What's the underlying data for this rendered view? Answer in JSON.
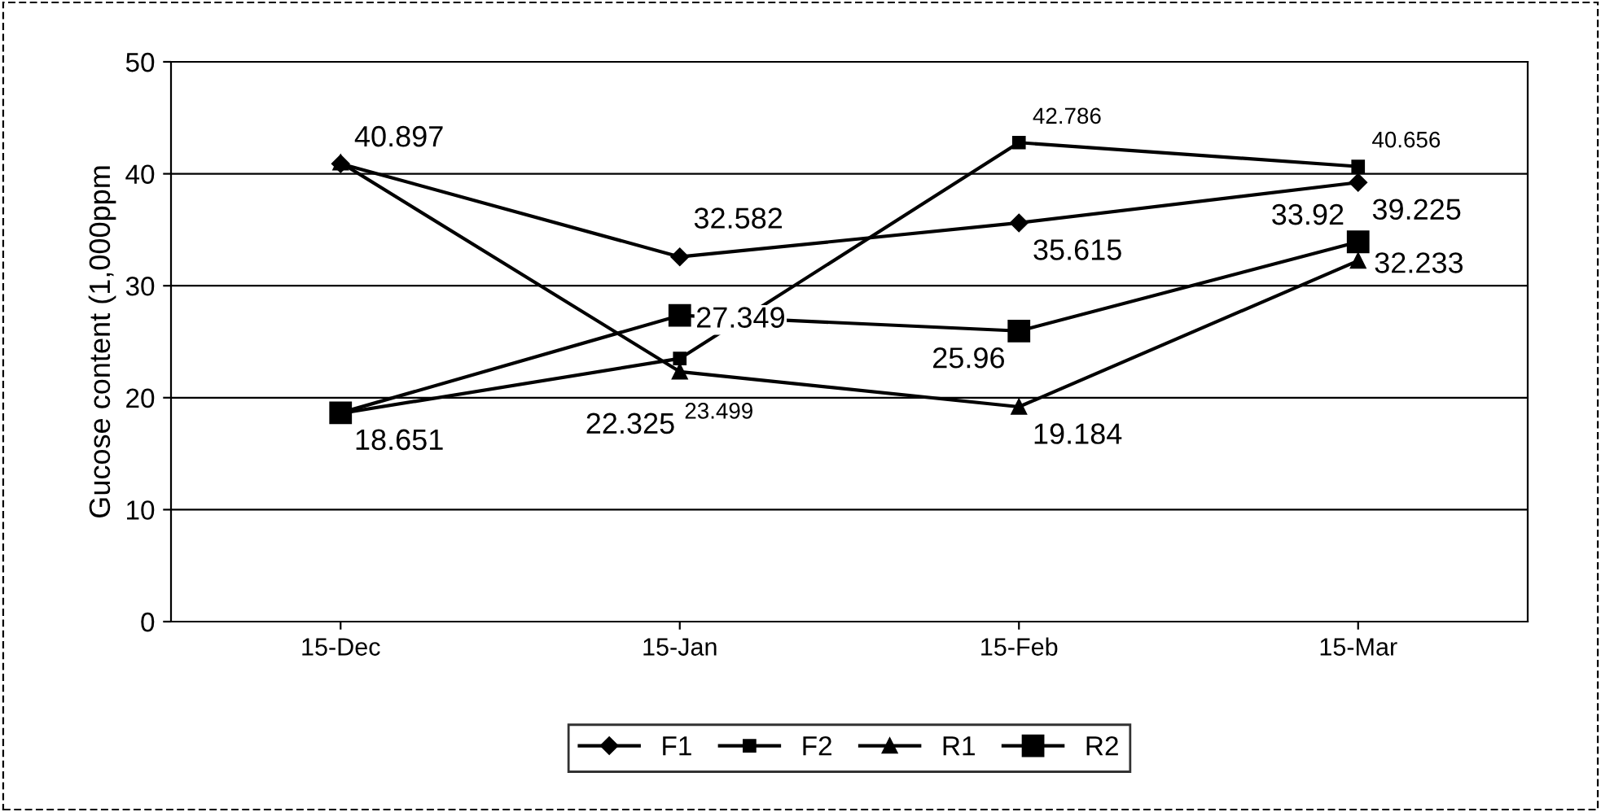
{
  "chart_data": {
    "type": "line",
    "ylabel": "Gucose content (1,000ppm",
    "categories": [
      "15-Dec",
      "15-Jan",
      "15-Feb",
      "15-Mar"
    ],
    "series": [
      {
        "name": "F1",
        "color": "#000000",
        "marker": "diamond",
        "values": [
          40.897,
          32.582,
          35.615,
          39.225
        ],
        "value_labels": [
          "40.897",
          "32.582",
          "35.615",
          "39.225"
        ]
      },
      {
        "name": "F2",
        "color": "#000000",
        "marker": "square",
        "values": [
          18.6,
          23.499,
          42.786,
          40.656
        ],
        "value_labels": [
          null,
          "23.499",
          "42.786",
          "40.656"
        ]
      },
      {
        "name": "R1",
        "color": "#000000",
        "marker": "triangle",
        "values": [
          41,
          22.325,
          19.184,
          32.233
        ],
        "value_labels": [
          null,
          "22.325",
          "19.184",
          "32.233"
        ]
      },
      {
        "name": "R2",
        "color": "#000000",
        "marker": "square",
        "values": [
          18.651,
          27.349,
          25.96,
          33.92
        ],
        "value_labels": [
          "18.651",
          "27.349",
          "25.96",
          "33.92"
        ]
      }
    ],
    "ylim": [
      0,
      50
    ],
    "yticks": [
      0,
      10,
      20,
      30,
      40,
      50
    ],
    "grid": "y",
    "legend": "bottom",
    "line_style": "solid"
  }
}
